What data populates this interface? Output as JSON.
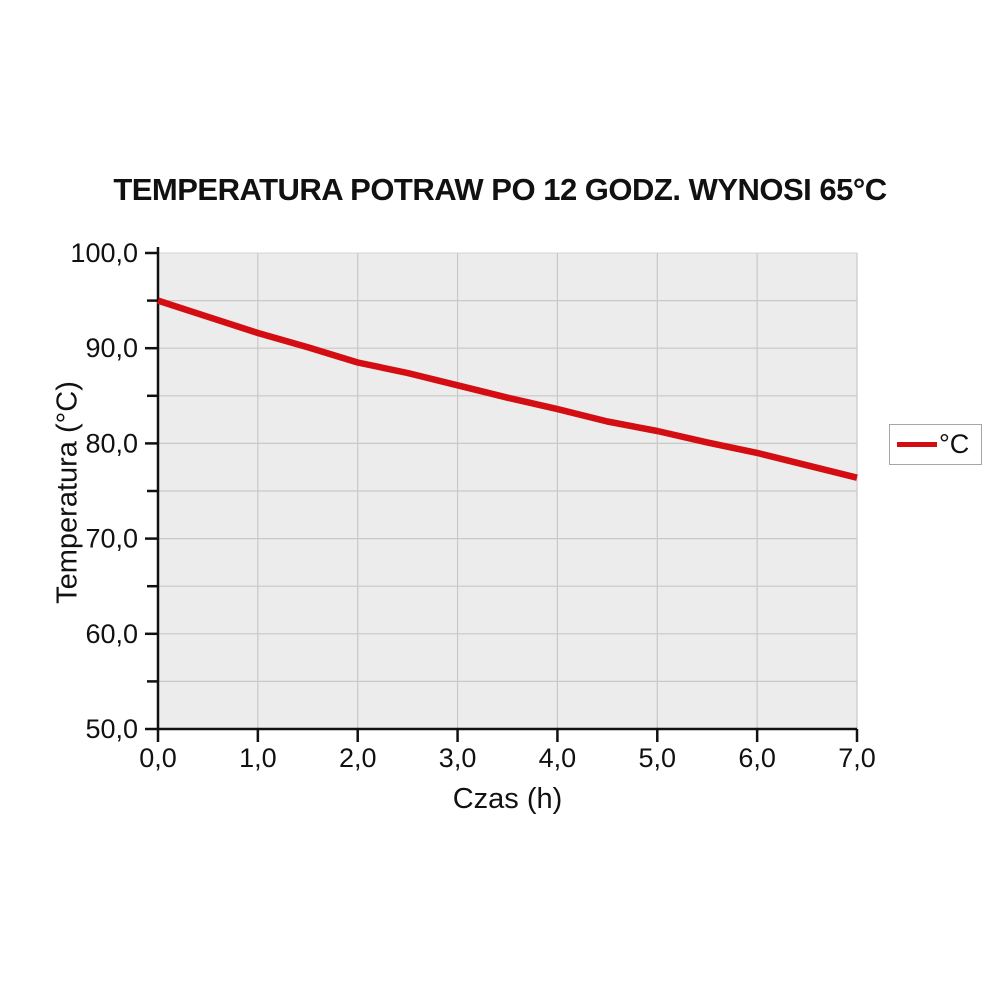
{
  "title": "TEMPERATURA POTRAW PO 12 GODZ. WYNOSI 65°C",
  "legend": {
    "label": "°C"
  },
  "chart_data": {
    "type": "line",
    "title": "TEMPERATURA POTRAW PO 12 GODZ. WYNOSI 65°C",
    "xlabel": "Czas (h)",
    "ylabel": "Temperatura (°C)",
    "xlim": [
      0,
      7
    ],
    "ylim": [
      50,
      100
    ],
    "grid": true,
    "legend_position": "right",
    "x": [
      0.0,
      0.5,
      1.0,
      1.5,
      2.0,
      2.5,
      3.0,
      3.5,
      4.0,
      4.5,
      5.0,
      5.5,
      6.0,
      6.5,
      7.0
    ],
    "series": [
      {
        "name": "°C",
        "color": "#d40d12",
        "values": [
          95.0,
          93.3,
          91.6,
          90.1,
          88.5,
          87.4,
          86.1,
          84.8,
          83.6,
          82.3,
          81.3,
          80.1,
          79.0,
          77.7,
          76.4
        ]
      }
    ],
    "x_ticks": [
      {
        "value": 0,
        "label": "0,0"
      },
      {
        "value": 1,
        "label": "1,0"
      },
      {
        "value": 2,
        "label": "2,0"
      },
      {
        "value": 3,
        "label": "3,0"
      },
      {
        "value": 4,
        "label": "4,0"
      },
      {
        "value": 5,
        "label": "5,0"
      },
      {
        "value": 6,
        "label": "6,0"
      },
      {
        "value": 7,
        "label": "7,0"
      }
    ],
    "y_ticks": [
      {
        "value": 50,
        "label": "50,0"
      },
      {
        "value": 60,
        "label": "60,0"
      },
      {
        "value": 70,
        "label": "70,0"
      },
      {
        "value": 80,
        "label": "80,0"
      },
      {
        "value": 90,
        "label": "90,0"
      },
      {
        "value": 100,
        "label": "100,0"
      }
    ],
    "y_minor_ticks": [
      55,
      65,
      75,
      85,
      95
    ],
    "x_gridlines": [
      1,
      2,
      3,
      4,
      5,
      6,
      7
    ],
    "y_gridlines": [
      55,
      60,
      65,
      70,
      75,
      80,
      85,
      90,
      95
    ],
    "colors": {
      "line": "#d40d12",
      "plot_bg": "#ececec",
      "plot_border": "#d4d4d4",
      "grid": "#c8c8c8",
      "axis": "#111111",
      "tick_label": "#111111",
      "legend_border": "#a6a6a6"
    }
  }
}
